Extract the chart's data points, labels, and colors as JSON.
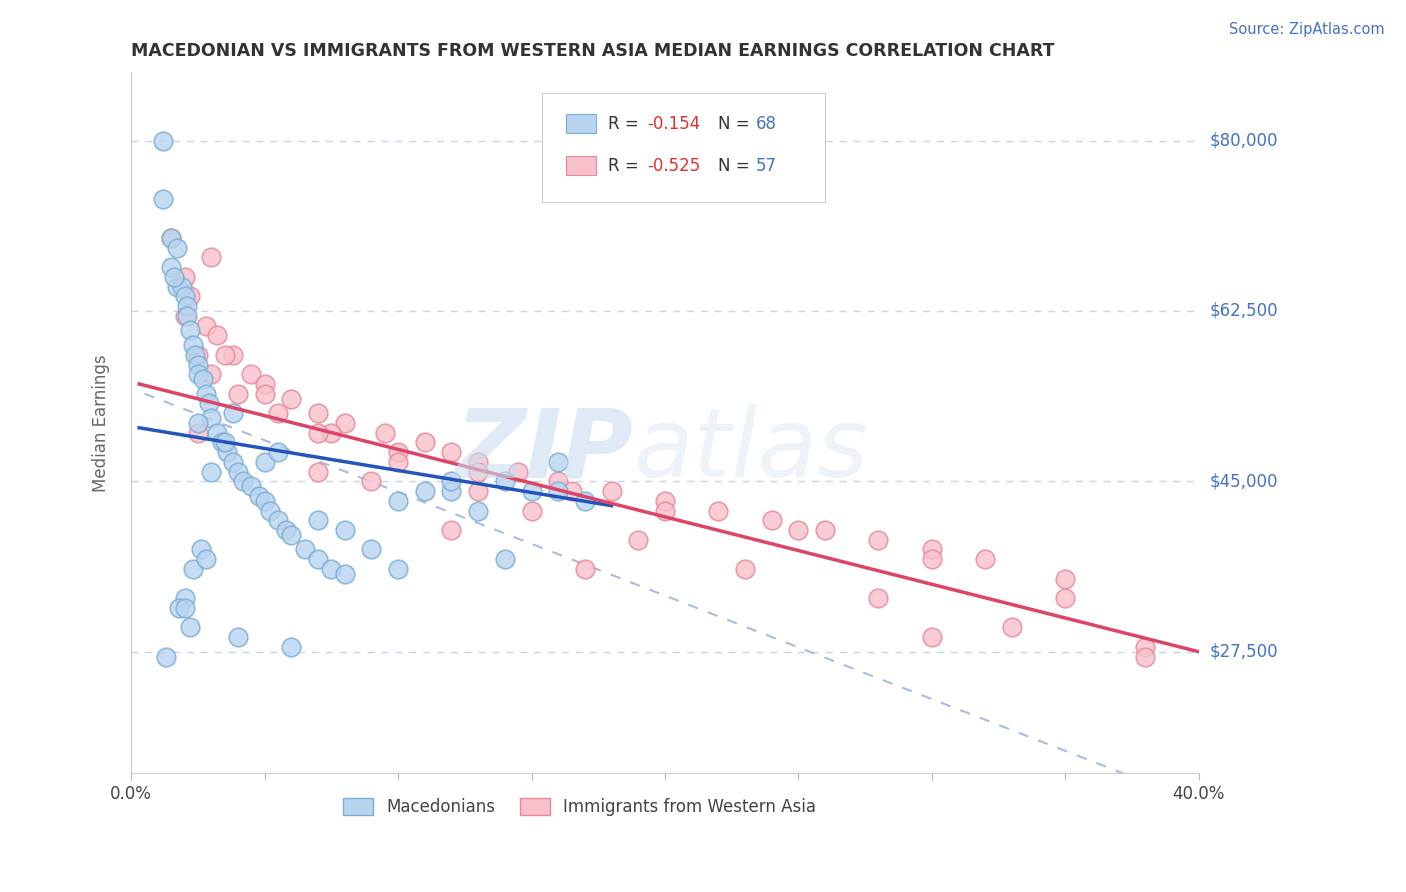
{
  "title": "MACEDONIAN VS IMMIGRANTS FROM WESTERN ASIA MEDIAN EARNINGS CORRELATION CHART",
  "source_text": "Source: ZipAtlas.com",
  "ylabel": "Median Earnings",
  "y_ticks": [
    27500,
    45000,
    62500,
    80000
  ],
  "y_tick_labels": [
    "$27,500",
    "$45,000",
    "$62,500",
    "$80,000"
  ],
  "x_min": 0.0,
  "x_max": 40.0,
  "y_min": 15000,
  "y_max": 87000,
  "macedonian_color": "#b8d4f0",
  "western_asia_color": "#f8c0cc",
  "macedonian_edge": "#7aadd4",
  "western_asia_edge": "#e88898",
  "blue_line_color": "#2255bb",
  "pink_line_color": "#dd4466",
  "dashed_line_color": "#aabbdd",
  "watermark_zip": "ZIP",
  "watermark_atlas": "atlas",
  "macedonians_label": "Macedonians",
  "western_asia_label": "Immigrants from Western Asia",
  "blue_line": [
    0.3,
    50500,
    18.0,
    42500
  ],
  "pink_line": [
    0.3,
    55000,
    40.0,
    27500
  ],
  "dashed_line": [
    0.5,
    54000,
    40.0,
    12000
  ],
  "mac_x": [
    1.2,
    1.2,
    1.5,
    1.7,
    1.7,
    1.9,
    2.0,
    2.1,
    2.1,
    2.2,
    2.3,
    2.4,
    2.5,
    2.5,
    2.7,
    2.8,
    2.9,
    3.0,
    3.2,
    3.4,
    3.6,
    3.8,
    4.0,
    4.2,
    4.5,
    4.8,
    5.0,
    5.2,
    5.5,
    5.8,
    6.0,
    6.5,
    7.0,
    7.5,
    8.0,
    9.0,
    10.0,
    11.0,
    12.0,
    13.0,
    14.0,
    15.0,
    16.0,
    17.0,
    2.0,
    2.3,
    2.6,
    1.5,
    1.6,
    2.5,
    3.5,
    5.0,
    1.8,
    2.8,
    2.0,
    2.2,
    4.0,
    6.0,
    8.0,
    10.0,
    14.0,
    12.0,
    16.0,
    5.5,
    7.0,
    1.3,
    3.0,
    3.8
  ],
  "mac_y": [
    80000,
    74000,
    70000,
    69000,
    65000,
    65000,
    64000,
    63000,
    62000,
    60500,
    59000,
    58000,
    57000,
    56000,
    55500,
    54000,
    53000,
    51500,
    50000,
    49000,
    48000,
    47000,
    46000,
    45000,
    44500,
    43500,
    43000,
    42000,
    41000,
    40000,
    39500,
    38000,
    37000,
    36000,
    35500,
    38000,
    43000,
    44000,
    44000,
    42000,
    45000,
    44000,
    44000,
    43000,
    33000,
    36000,
    38000,
    67000,
    66000,
    51000,
    49000,
    47000,
    32000,
    37000,
    32000,
    30000,
    29000,
    28000,
    40000,
    36000,
    37000,
    45000,
    47000,
    48000,
    41000,
    27000,
    46000,
    52000
  ],
  "wa_x": [
    1.5,
    2.0,
    2.2,
    2.8,
    3.2,
    3.8,
    4.5,
    5.0,
    6.0,
    7.0,
    8.0,
    9.5,
    11.0,
    12.0,
    13.0,
    14.5,
    16.0,
    18.0,
    20.0,
    22.0,
    24.0,
    26.0,
    28.0,
    30.0,
    32.0,
    35.0,
    38.0,
    2.5,
    3.0,
    4.0,
    5.5,
    7.5,
    10.0,
    13.0,
    16.5,
    20.0,
    25.0,
    30.0,
    35.0,
    2.0,
    3.5,
    5.0,
    7.0,
    10.0,
    13.0,
    15.0,
    19.0,
    23.0,
    28.0,
    33.0,
    38.0,
    3.0,
    7.0,
    12.0,
    17.0,
    2.5,
    9.0,
    30.0
  ],
  "wa_y": [
    70000,
    66000,
    64000,
    61000,
    60000,
    58000,
    56000,
    55000,
    53500,
    52000,
    51000,
    50000,
    49000,
    48000,
    47000,
    46000,
    45000,
    44000,
    43000,
    42000,
    41000,
    40000,
    39000,
    38000,
    37000,
    35000,
    28000,
    58000,
    56000,
    54000,
    52000,
    50000,
    48000,
    46000,
    44000,
    42000,
    40000,
    37000,
    33000,
    62000,
    58000,
    54000,
    50000,
    47000,
    44000,
    42000,
    39000,
    36000,
    33000,
    30000,
    27000,
    68000,
    46000,
    40000,
    36000,
    50000,
    45000,
    29000
  ]
}
